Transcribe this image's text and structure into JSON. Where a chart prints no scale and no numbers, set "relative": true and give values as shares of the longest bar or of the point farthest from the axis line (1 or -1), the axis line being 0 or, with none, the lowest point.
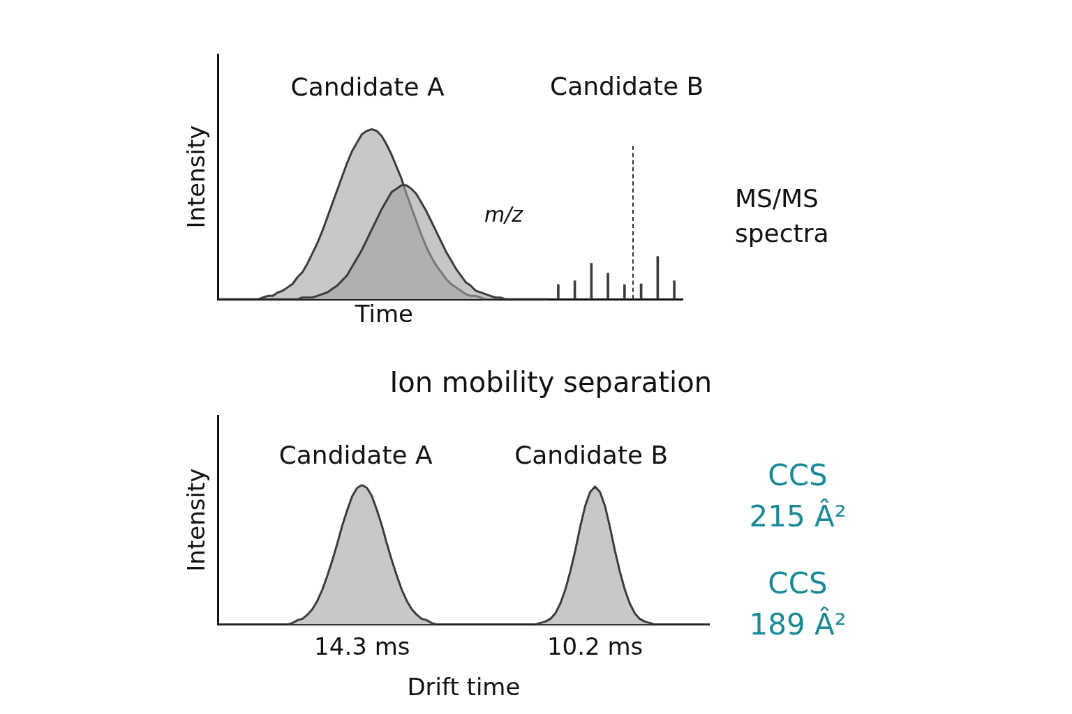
{
  "chart_data": [
    {
      "type": "area",
      "relative": true,
      "xlabel": "Time",
      "ylabel": "Intensity",
      "tick_labels": false,
      "annotations": [
        "Candidate A",
        "m/z"
      ],
      "categories": [
        null,
        null,
        null,
        null,
        null,
        null,
        null,
        null,
        null,
        null,
        null,
        null,
        null,
        null,
        null,
        null,
        null,
        null,
        null,
        null,
        null,
        null,
        null,
        null,
        null,
        null,
        null,
        null,
        null,
        null,
        null,
        null,
        null,
        null,
        null,
        null,
        null,
        null,
        null,
        null,
        null,
        null,
        null,
        null,
        null,
        null,
        null,
        null,
        null,
        null,
        null,
        null,
        null,
        null,
        null,
        null,
        null,
        null,
        null,
        null,
        null,
        null,
        null,
        null,
        null,
        null,
        null,
        null
      ],
      "series": [
        {
          "color": "#3c3c3c",
          "values": [
            0,
            0,
            0,
            0,
            0,
            0,
            0,
            0,
            0,
            0.01,
            0.02,
            0.02,
            0.04,
            0.05,
            0.07,
            0.09,
            0.13,
            0.16,
            0.21,
            0.27,
            0.33,
            0.4,
            0.48,
            0.56,
            0.64,
            0.72,
            0.8,
            0.87,
            0.92,
            0.97,
            0.99,
            1,
            0.99,
            0.96,
            0.91,
            0.85,
            0.78,
            0.71,
            0.62,
            0.54,
            0.46,
            0.38,
            0.31,
            0.25,
            0.2,
            0.16,
            0.12,
            0.09,
            0.07,
            0.05,
            0.03,
            0.02,
            0.02,
            0.01,
            0,
            0,
            0,
            0,
            0,
            0,
            0,
            0,
            0,
            0,
            0,
            0,
            0,
            0
          ]
        },
        {
          "color": "#3c3c3c",
          "values": [
            0,
            0,
            0,
            0,
            0,
            0,
            0,
            0,
            0,
            0,
            0,
            0,
            0,
            0,
            0,
            0,
            0,
            0.01,
            0.01,
            0.01,
            0.02,
            0.03,
            0.04,
            0.06,
            0.08,
            0.11,
            0.14,
            0.19,
            0.24,
            0.29,
            0.35,
            0.41,
            0.47,
            0.53,
            0.58,
            0.63,
            0.65,
            0.67,
            0.67,
            0.65,
            0.62,
            0.57,
            0.52,
            0.46,
            0.4,
            0.34,
            0.28,
            0.23,
            0.18,
            0.14,
            0.1,
            0.08,
            0.05,
            0.04,
            0.03,
            0.02,
            0.01,
            0.01,
            0,
            0,
            0,
            0,
            0,
            0,
            0,
            0,
            0,
            0
          ]
        }
      ]
    },
    {
      "type": "bar",
      "relative": true,
      "tick_labels": false,
      "annotations": [
        "Candidate B",
        "MS/MS spectra"
      ],
      "categories": [
        null,
        null,
        null,
        null,
        null,
        null,
        null,
        null
      ],
      "series": [
        {
          "color": "#3c3c3c",
          "values": [
            0.34,
            0.43,
            0.84,
            0.61,
            0.34,
            0.36,
            1,
            0.43
          ]
        }
      ]
    },
    {
      "type": "area",
      "relative": true,
      "title": "Ion mobility separation",
      "xlabel": "Drift time",
      "ylabel": "Intensity",
      "tick_labels": "x",
      "annotations": [
        "Candidate A",
        "Candidate B",
        "CCS 215 Â²",
        "CCS 189 Â²"
      ],
      "categories": [
        null,
        null,
        null,
        null,
        null,
        null,
        null,
        null,
        null,
        null,
        null,
        null,
        null,
        null,
        null,
        null,
        null,
        null,
        null,
        null,
        null,
        null,
        null,
        null,
        null,
        null,
        null,
        null,
        null,
        "14.3 ms",
        null,
        null,
        null,
        null,
        null,
        null,
        null,
        null,
        null,
        null,
        null,
        null,
        null,
        null,
        null,
        null,
        null,
        null,
        null,
        null,
        null,
        null,
        null,
        null,
        null,
        null,
        null,
        null,
        null,
        null,
        null,
        null,
        null,
        null,
        null,
        null,
        null,
        null,
        null,
        null,
        null,
        null,
        null,
        null,
        null,
        null,
        "10.2 ms",
        null,
        null,
        null,
        null,
        null,
        null,
        null,
        null,
        null,
        null,
        null,
        null,
        null,
        null,
        null,
        null,
        null,
        null,
        null,
        null,
        null,
        null,
        null
      ],
      "series": [
        {
          "color": "#3c3c3c",
          "values": [
            0,
            0,
            0,
            0,
            0,
            0,
            0,
            0,
            0,
            0,
            0,
            0,
            0,
            0,
            0,
            0.01,
            0.03,
            0.04,
            0.07,
            0.11,
            0.17,
            0.25,
            0.35,
            0.46,
            0.58,
            0.71,
            0.82,
            0.92,
            0.98,
            1,
            0.98,
            0.92,
            0.82,
            0.71,
            0.58,
            0.46,
            0.35,
            0.25,
            0.17,
            0.11,
            0.07,
            0.04,
            0.03,
            0.01,
            0,
            0,
            0,
            0,
            0,
            0,
            0,
            0,
            0,
            0,
            0,
            0,
            0,
            0,
            0,
            0,
            0,
            0,
            0,
            0,
            0,
            0.01,
            0.02,
            0.04,
            0.08,
            0.15,
            0.25,
            0.38,
            0.53,
            0.7,
            0.85,
            0.95,
            0.99,
            0.95,
            0.85,
            0.7,
            0.53,
            0.38,
            0.25,
            0.15,
            0.08,
            0.04,
            0.02,
            0.01,
            0,
            0,
            0,
            0,
            0,
            0,
            0,
            0,
            0,
            0,
            0,
            0
          ]
        }
      ]
    }
  ]
}
